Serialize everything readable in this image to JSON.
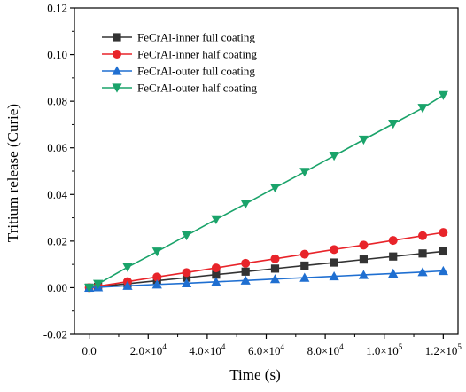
{
  "chart_data": {
    "type": "line",
    "title": "",
    "xlabel": "Time (s)",
    "ylabel": "Tritium release (Curie)",
    "xlim": [
      -5000,
      125000
    ],
    "ylim": [
      -0.02,
      0.12
    ],
    "grid": false,
    "legend_position": "top-left",
    "x_ticks": [
      0,
      20000,
      40000,
      60000,
      80000,
      100000,
      120000
    ],
    "x_tick_labels": [
      {
        "mantissa": "0.0",
        "exponent": ""
      },
      {
        "mantissa": "2.0×10",
        "exponent": "4"
      },
      {
        "mantissa": "4.0×10",
        "exponent": "4"
      },
      {
        "mantissa": "6.0×10",
        "exponent": "4"
      },
      {
        "mantissa": "8.0×10",
        "exponent": "4"
      },
      {
        "mantissa": "1.0×10",
        "exponent": "5"
      },
      {
        "mantissa": "1.2×10",
        "exponent": "5"
      }
    ],
    "y_ticks": [
      -0.02,
      0.0,
      0.02,
      0.04,
      0.06,
      0.08,
      0.1,
      0.12
    ],
    "y_tick_labels": [
      "-0.02",
      "0.00",
      "0.02",
      "0.04",
      "0.06",
      "0.08",
      "0.10",
      "0.12"
    ],
    "x": [
      0,
      3000,
      13000,
      23000,
      33000,
      43000,
      53000,
      63000,
      73000,
      83000,
      93000,
      103000,
      113000,
      120000
    ],
    "series": [
      {
        "name": "FeCrAl-inner full coating",
        "color": "#333333",
        "marker": "square",
        "values": [
          0.0,
          0.0004,
          0.0017,
          0.003,
          0.0043,
          0.0056,
          0.0069,
          0.0082,
          0.0095,
          0.0108,
          0.0121,
          0.0134,
          0.0147,
          0.0156
        ]
      },
      {
        "name": "FeCrAl-inner half coating",
        "color": "#e8242a",
        "marker": "circle",
        "values": [
          0.0,
          0.0006,
          0.0026,
          0.0046,
          0.0065,
          0.0085,
          0.0105,
          0.0124,
          0.0144,
          0.0164,
          0.0183,
          0.0203,
          0.0223,
          0.0237
        ]
      },
      {
        "name": "FeCrAl-outer full coating",
        "color": "#1f6fd1",
        "marker": "triangle-up",
        "values": [
          0.0,
          0.0002,
          0.0008,
          0.0014,
          0.0019,
          0.0025,
          0.0031,
          0.0037,
          0.0043,
          0.0049,
          0.0055,
          0.0061,
          0.0067,
          0.0072
        ]
      },
      {
        "name": "FeCrAl-outer half coating",
        "color": "#1aa36a",
        "marker": "triangle-down",
        "values": [
          0.0,
          0.0016,
          0.0088,
          0.0155,
          0.0224,
          0.0293,
          0.036,
          0.0429,
          0.0497,
          0.0566,
          0.0635,
          0.0703,
          0.0771,
          0.0826
        ]
      }
    ]
  }
}
